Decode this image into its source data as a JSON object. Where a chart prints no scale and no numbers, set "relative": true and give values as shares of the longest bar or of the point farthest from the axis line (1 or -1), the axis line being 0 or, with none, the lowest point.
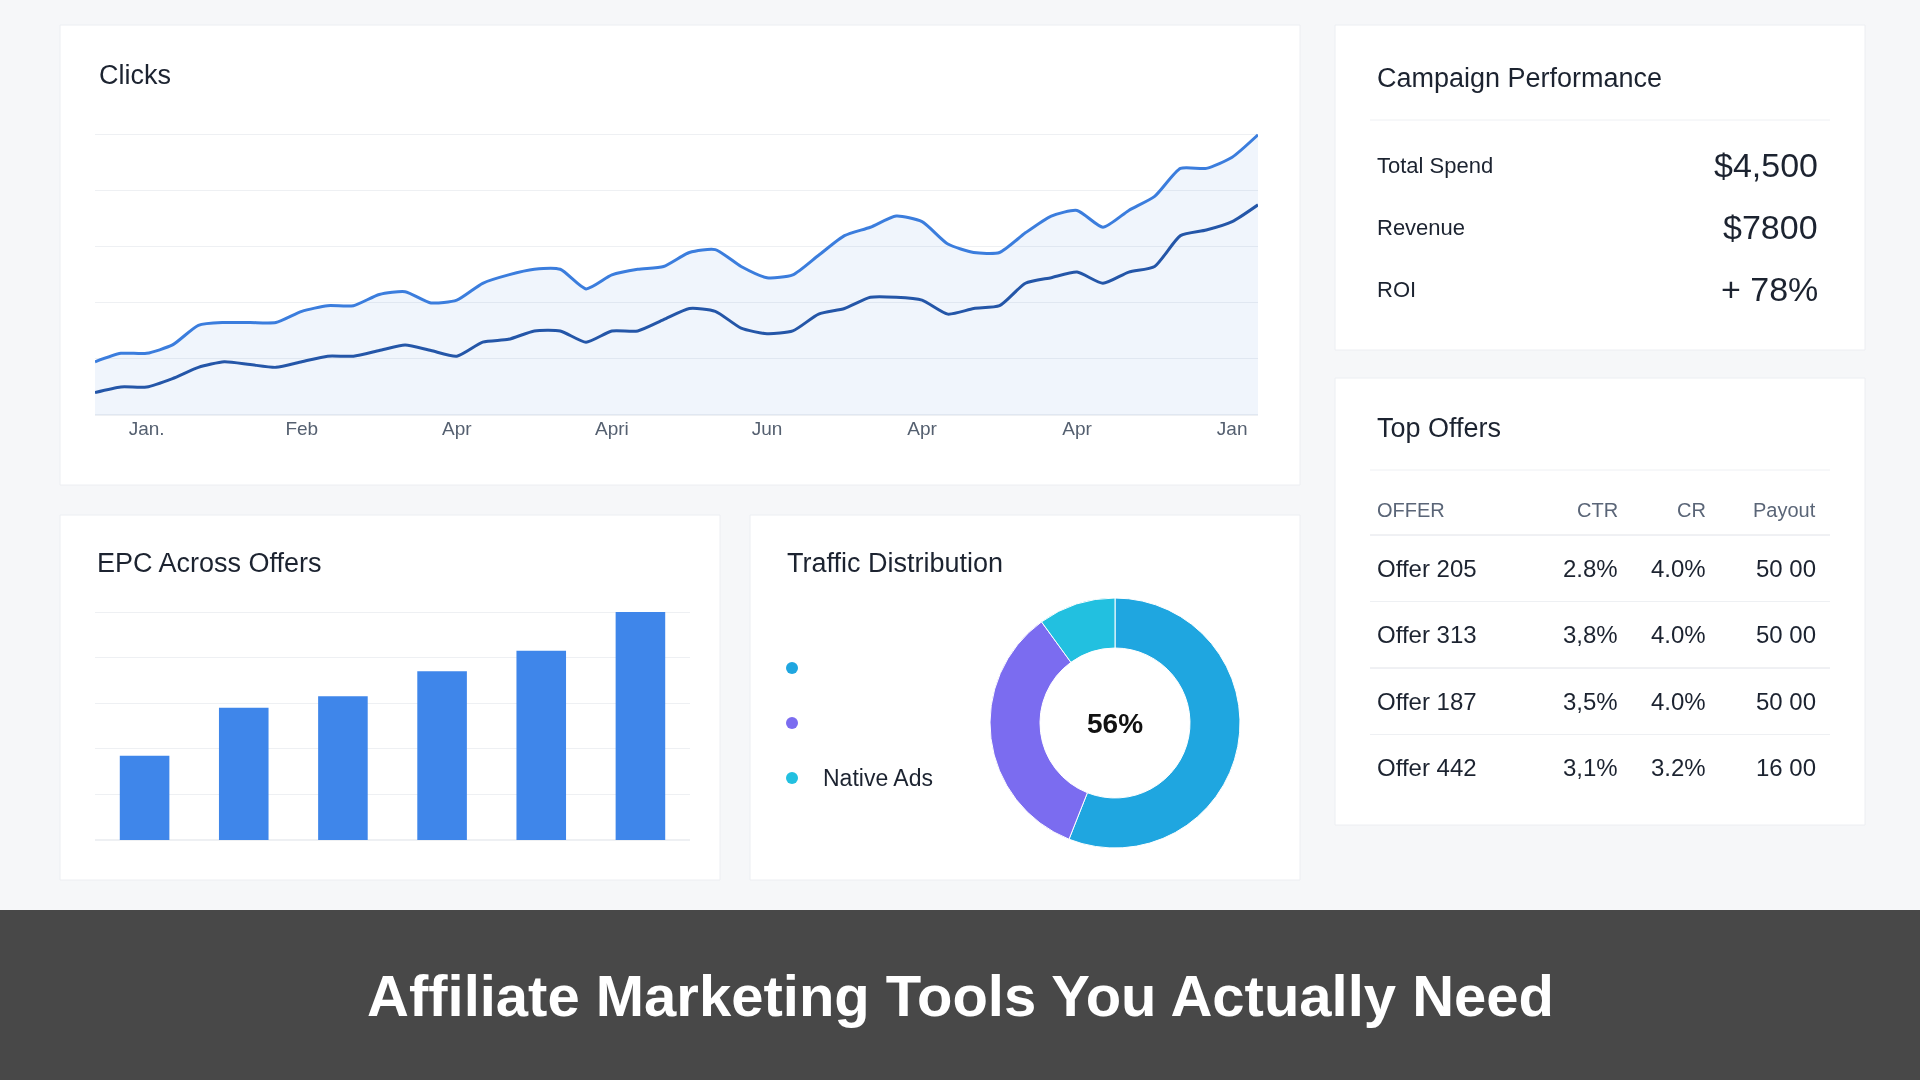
{
  "chart_data": [
    {
      "type": "line",
      "title": "Clicks",
      "relative": true,
      "grid": "y",
      "line_style": "solid",
      "marker": "none",
      "categories": [
        null,
        null,
        "Jan.",
        null,
        null,
        null,
        null,
        null,
        "Feb",
        null,
        null,
        null,
        null,
        null,
        "Apr",
        null,
        null,
        null,
        null,
        null,
        "Apri",
        null,
        null,
        null,
        null,
        null,
        "Jun",
        null,
        null,
        null,
        null,
        null,
        "Apr",
        null,
        null,
        null,
        null,
        null,
        "Apr",
        null,
        null,
        null,
        null,
        null,
        "Jan",
        null
      ],
      "series": [
        {
          "type": "area",
          "color": "#3b7ddd",
          "values": [
            0.19,
            0.22,
            0.22,
            0.25,
            0.32,
            0.33,
            0.33,
            0.33,
            0.37,
            0.39,
            0.39,
            0.43,
            0.44,
            0.4,
            0.41,
            0.47,
            0.5,
            0.52,
            0.52,
            0.45,
            0.5,
            0.52,
            0.53,
            0.58,
            0.59,
            0.53,
            0.49,
            0.5,
            0.57,
            0.64,
            0.67,
            0.71,
            0.69,
            0.61,
            0.58,
            0.58,
            0.65,
            0.71,
            0.73,
            0.67,
            0.73,
            0.78,
            0.88,
            0.88,
            0.92,
            1
          ]
        },
        {
          "type": "line",
          "color": "#2456a8",
          "values": [
            0.08,
            0.1,
            0.1,
            0.13,
            0.17,
            0.19,
            0.18,
            0.17,
            0.19,
            0.21,
            0.21,
            0.23,
            0.25,
            0.23,
            0.21,
            0.26,
            0.27,
            0.3,
            0.3,
            0.26,
            0.3,
            0.3,
            0.34,
            0.38,
            0.37,
            0.31,
            0.29,
            0.3,
            0.36,
            0.38,
            0.42,
            0.42,
            0.41,
            0.36,
            0.38,
            0.39,
            0.47,
            0.49,
            0.51,
            0.47,
            0.51,
            0.53,
            0.64,
            0.66,
            0.69,
            0.75
          ]
        }
      ]
    },
    {
      "type": "bar",
      "title": "EPC Across Offers",
      "relative": true,
      "grid": "y",
      "color": "#3f86ea",
      "categories": [
        null,
        null,
        null,
        null,
        null,
        null
      ],
      "values": [
        0.37,
        0.58,
        0.63,
        0.74,
        0.83,
        1
      ]
    },
    {
      "type": "donut",
      "title": "Traffic Distribution",
      "legend": "left",
      "categories": [
        null,
        null,
        "Native Ads"
      ],
      "values": [
        56,
        34,
        10
      ],
      "colors": [
        "#1fa6e0",
        "#7b6cf0",
        "#22c0e0"
      ],
      "annotations": [
        "56%"
      ]
    },
    {
      "type": "other",
      "title": "Campaign Performance",
      "annotations": [
        "Total Spend",
        "$4,500",
        "Revenue",
        "$7800",
        "ROI",
        "+ 78%"
      ]
    },
    {
      "type": "other",
      "title": "Top Offers",
      "annotations": [
        "OFFER",
        "CTR",
        "CR",
        "Payout",
        "Offer 205",
        "2.8%",
        "4.0%",
        "50 00",
        "Offer 313",
        "3,8%",
        "4.0%",
        "50 00",
        "Offer 187",
        "3,5%",
        "4.0%",
        "50 00",
        "Offer 442",
        "3,1%",
        "3.2%",
        "16 00"
      ]
    },
    {
      "type": "other",
      "title": "Affiliate Marketing Tools You Actually Need"
    }
  ]
}
